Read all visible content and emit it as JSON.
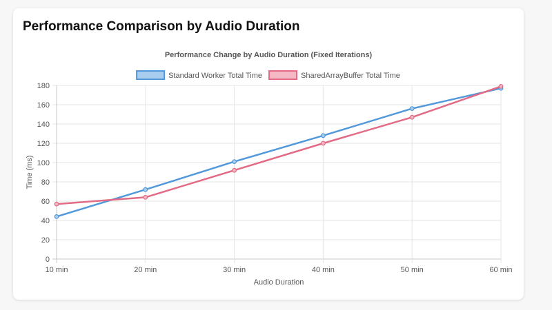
{
  "page": {
    "title": "Performance Comparison by Audio Duration"
  },
  "chart_data": {
    "type": "line",
    "title": "Performance Change by Audio Duration (Fixed Iterations)",
    "xlabel": "Audio Duration",
    "ylabel": "Time (ms)",
    "categories": [
      "10 min",
      "20 min",
      "30 min",
      "40 min",
      "50 min",
      "60 min"
    ],
    "ylim": [
      0,
      180
    ],
    "yticks": [
      0,
      20,
      40,
      60,
      80,
      100,
      120,
      140,
      160,
      180
    ],
    "grid": true,
    "legend_position": "top-center",
    "series": [
      {
        "name": "Standard Worker Total Time",
        "values": [
          44,
          72,
          101,
          128,
          156,
          177
        ],
        "color": "#5199db",
        "fill": "#a8cdef"
      },
      {
        "name": "SharedArrayBuffer Total Time",
        "values": [
          57,
          64,
          92,
          120,
          147,
          179
        ],
        "color": "#e26a84",
        "fill": "#f5b9c6"
      }
    ]
  }
}
